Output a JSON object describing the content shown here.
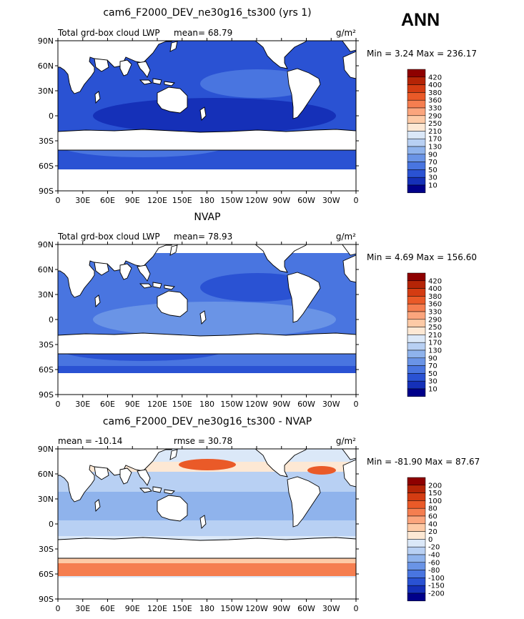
{
  "season": "ANN",
  "axes": {
    "lat_labels": [
      "90N",
      "60N",
      "30N",
      "0",
      "30S",
      "60S",
      "90S"
    ],
    "lon_labels": [
      "0",
      "30E",
      "60E",
      "90E",
      "120E",
      "150E",
      "180",
      "150W",
      "120W",
      "90W",
      "60W",
      "30W",
      "0"
    ]
  },
  "panels": [
    {
      "title": "cam6_F2000_DEV_ne30g16_ts300 (yrs 1)",
      "left_label": "Total grd-box cloud LWP",
      "mid_label": "mean=   68.79",
      "units": "g/m²",
      "stats": "Min =    3.24 Max = 236.17",
      "colorbar": {
        "labels": [
          "420",
          "400",
          "380",
          "360",
          "330",
          "290",
          "250",
          "210",
          "170",
          "130",
          "90",
          "70",
          "50",
          "30",
          "10"
        ],
        "colors": [
          "#8e0000",
          "#b52406",
          "#d43c12",
          "#ea5a28",
          "#f57e50",
          "#fba57d",
          "#fdcaa6",
          "#fde8d4",
          "#dbe8f8",
          "#b8d0f3",
          "#8fb3ec",
          "#6a94e6",
          "#4975e0",
          "#2a52d3",
          "#1530b8",
          "#00008a"
        ]
      }
    },
    {
      "title": "NVAP",
      "left_label": "Total grd-box cloud LWP",
      "mid_label": "mean=   78.93",
      "units": "g/m²",
      "stats": "Min =    4.69 Max = 156.60",
      "colorbar": {
        "labels": [
          "420",
          "400",
          "380",
          "360",
          "330",
          "290",
          "250",
          "210",
          "170",
          "130",
          "90",
          "70",
          "50",
          "30",
          "10"
        ],
        "colors": [
          "#8e0000",
          "#b52406",
          "#d43c12",
          "#ea5a28",
          "#f57e50",
          "#fba57d",
          "#fdcaa6",
          "#fde8d4",
          "#dbe8f8",
          "#b8d0f3",
          "#8fb3ec",
          "#6a94e6",
          "#4975e0",
          "#2a52d3",
          "#1530b8",
          "#00008a"
        ]
      }
    },
    {
      "title": "cam6_F2000_DEV_ne30g16_ts300 - NVAP",
      "left_label": "mean = -10.14",
      "mid_label": "rmse =   30.78",
      "units": "g/m²",
      "stats": "Min = -81.90 Max =  87.67",
      "colorbar": {
        "labels": [
          "200",
          "150",
          "100",
          "80",
          "60",
          "40",
          "20",
          "0",
          "-20",
          "-40",
          "-60",
          "-80",
          "-100",
          "-150",
          "-200"
        ],
        "colors": [
          "#8e0000",
          "#b52406",
          "#d43c12",
          "#ea5a28",
          "#f57e50",
          "#fba57d",
          "#fdcaa6",
          "#fde8d4",
          "#dbe8f8",
          "#b8d0f3",
          "#8fb3ec",
          "#6a94e6",
          "#4975e0",
          "#2a52d3",
          "#1530b8",
          "#00008a"
        ]
      }
    }
  ]
}
